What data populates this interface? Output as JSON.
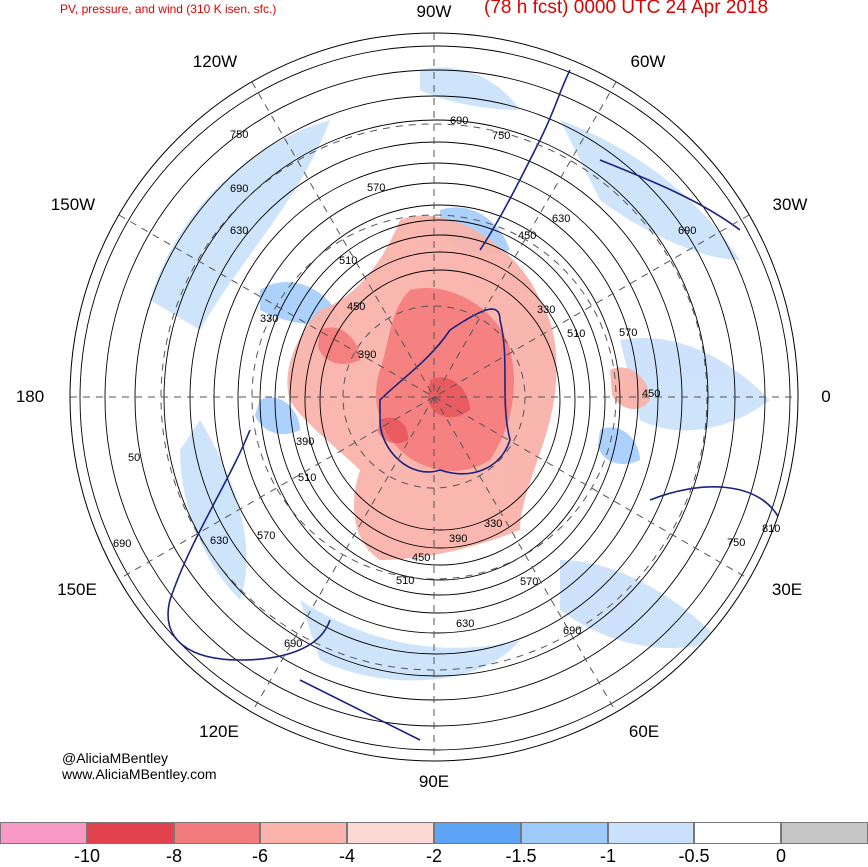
{
  "header": {
    "left_title": "PV, pressure, and wind (310 K isen. sfc.)",
    "right_title": "(78 h fcst) 0000 UTC 24 Apr 2018"
  },
  "longitude_labels": {
    "n90w": "90W",
    "n60w": "60W",
    "n120w": "120W",
    "n150w": "150W",
    "n30w": "30W",
    "n180": "180",
    "n0": "0",
    "n150e": "150E",
    "n30e": "30E",
    "n120e": "120E",
    "n60e": "60E",
    "n90e": "90E"
  },
  "contour_labels": [
    {
      "text": "690"
    },
    {
      "text": "750"
    },
    {
      "text": "750"
    },
    {
      "text": "690"
    },
    {
      "text": "630"
    },
    {
      "text": "570"
    },
    {
      "text": "630"
    },
    {
      "text": "450"
    },
    {
      "text": "690"
    },
    {
      "text": "510"
    },
    {
      "text": "450"
    },
    {
      "text": "330"
    },
    {
      "text": "330"
    },
    {
      "text": "510"
    },
    {
      "text": "570"
    },
    {
      "text": "390"
    },
    {
      "text": "390"
    },
    {
      "text": "450"
    },
    {
      "text": "510"
    },
    {
      "text": "50"
    },
    {
      "text": "630"
    },
    {
      "text": "570"
    },
    {
      "text": "690"
    },
    {
      "text": "330"
    },
    {
      "text": "390"
    },
    {
      "text": "450"
    },
    {
      "text": "510"
    },
    {
      "text": "570"
    },
    {
      "text": "810"
    },
    {
      "text": "750"
    },
    {
      "text": "630"
    },
    {
      "text": "690"
    },
    {
      "text": "690"
    }
  ],
  "credits": {
    "handle": "@AliciaMBentley",
    "website": "www.AliciaMBentley.com"
  },
  "legend": {
    "colors": [
      "#f799c4",
      "#e0434d",
      "#f47b7b",
      "#f9b3ab",
      "#fbd9d4",
      "#5ea6f5",
      "#9ec9fb",
      "#c9e1fb",
      "#ffffff",
      "#c6c6c6"
    ],
    "ticks": [
      "-10",
      "-8",
      "-6",
      "-4",
      "-2",
      "-1.5",
      "-1",
      "-0.5",
      "0"
    ]
  }
}
